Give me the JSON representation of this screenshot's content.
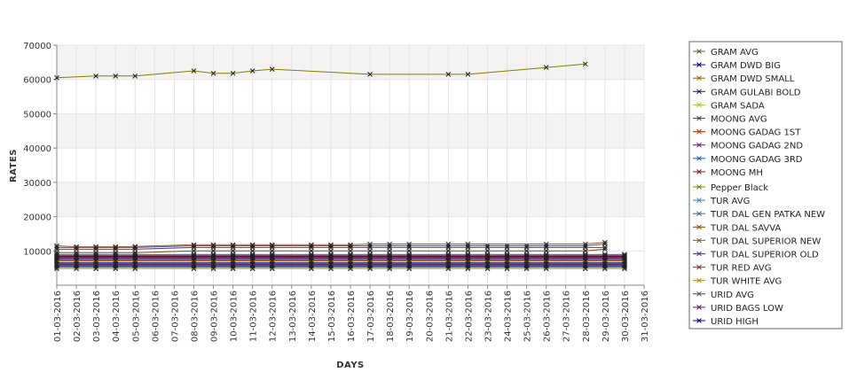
{
  "chart_data": {
    "type": "line",
    "title": "",
    "xlabel": "DAYS",
    "ylabel": "RATES",
    "ylim": [
      0,
      70000
    ],
    "yticks": [
      10000,
      20000,
      30000,
      40000,
      50000,
      60000,
      70000
    ],
    "grid": true,
    "legend_position": "right",
    "x": [
      "01-03-2016",
      "02-03-2016",
      "03-03-2016",
      "04-03-2016",
      "05-03-2016",
      "06-03-2016",
      "07-03-2016",
      "08-03-2016",
      "09-03-2016",
      "10-03-2016",
      "11-03-2016",
      "12-03-2016",
      "13-03-2016",
      "14-03-2016",
      "15-03-2016",
      "16-03-2016",
      "17-03-2016",
      "18-03-2016",
      "19-03-2016",
      "20-03-2016",
      "21-03-2016",
      "22-03-2016",
      "23-03-2016",
      "24-03-2016",
      "25-03-2016",
      "26-03-2016",
      "27-03-2016",
      "28-03-2016",
      "29-03-2016",
      "30-03-2016",
      "31-03-2016"
    ],
    "series": [
      {
        "name": "GRAM AVG",
        "color": "#556b2f",
        "values": [
          5200,
          5200,
          5200,
          5200,
          5200,
          null,
          null,
          5200,
          5200,
          5200,
          5200,
          5200,
          null,
          5200,
          5200,
          5200,
          5200,
          5200,
          5200,
          null,
          5200,
          5200,
          5200,
          5200,
          5200,
          5200,
          null,
          5200,
          5200,
          5200,
          null
        ]
      },
      {
        "name": "GRAM DWD BIG",
        "color": "#00008b",
        "values": [
          6500,
          6500,
          6500,
          6500,
          6500,
          null,
          null,
          6500,
          6500,
          6500,
          6500,
          6500,
          null,
          6500,
          6500,
          6500,
          6500,
          6500,
          6500,
          null,
          6500,
          6500,
          6500,
          6500,
          6500,
          6500,
          null,
          6500,
          6500,
          6500,
          null
        ]
      },
      {
        "name": "GRAM DWD SMALL",
        "color": "#8b6508",
        "values": [
          5800,
          5800,
          5800,
          5800,
          5800,
          null,
          null,
          5800,
          5800,
          5800,
          5800,
          5800,
          null,
          5800,
          5800,
          5800,
          5800,
          5800,
          5800,
          null,
          5800,
          5800,
          5800,
          5800,
          5800,
          5800,
          null,
          5800,
          5800,
          5800,
          null
        ]
      },
      {
        "name": "GRAM GULABI BOLD",
        "color": "#191970",
        "values": [
          5500,
          5500,
          5500,
          5500,
          5500,
          null,
          null,
          5500,
          5500,
          5500,
          5500,
          5500,
          null,
          5500,
          5500,
          5500,
          5500,
          5500,
          5500,
          null,
          5500,
          5500,
          5500,
          5500,
          5500,
          5500,
          null,
          5500,
          5500,
          5500,
          null
        ]
      },
      {
        "name": "GRAM SADA",
        "color": "#9acd32",
        "values": [
          4800,
          4800,
          4800,
          4800,
          4800,
          null,
          null,
          4800,
          4800,
          4800,
          4800,
          4800,
          null,
          4800,
          4800,
          4800,
          4800,
          4800,
          4800,
          null,
          4800,
          4800,
          4800,
          4800,
          4800,
          4800,
          null,
          4800,
          4800,
          4800,
          null
        ]
      },
      {
        "name": "MOONG AVG",
        "color": "#2f4f4f",
        "values": [
          7800,
          7800,
          7800,
          7800,
          7800,
          null,
          null,
          7800,
          7800,
          7800,
          7800,
          7800,
          null,
          7800,
          7800,
          7800,
          7800,
          7800,
          7800,
          null,
          7800,
          7800,
          7800,
          7800,
          7800,
          7800,
          null,
          7800,
          7800,
          7800,
          null
        ]
      },
      {
        "name": "MOONG GADAG 1ST",
        "color": "#cc3300",
        "values": [
          8800,
          8800,
          8800,
          8800,
          8800,
          null,
          null,
          8800,
          8800,
          8800,
          8800,
          8800,
          null,
          8800,
          8800,
          8800,
          8800,
          8800,
          8800,
          null,
          8800,
          8800,
          8800,
          8800,
          8800,
          8800,
          null,
          8800,
          8800,
          8800,
          null
        ]
      },
      {
        "name": "MOONG GADAG 2ND",
        "color": "#8b008b",
        "values": [
          8300,
          8300,
          8300,
          8300,
          8300,
          null,
          null,
          8300,
          8300,
          8300,
          8300,
          8300,
          null,
          8300,
          8300,
          8300,
          8300,
          8300,
          8300,
          null,
          8300,
          8300,
          8300,
          8300,
          8300,
          8300,
          null,
          8300,
          8300,
          8300,
          null
        ]
      },
      {
        "name": "MOONG GADAG 3RD",
        "color": "#1e4ecc",
        "values": [
          7500,
          7500,
          7500,
          7500,
          7500,
          null,
          null,
          7500,
          7500,
          7500,
          7500,
          7500,
          null,
          7500,
          7500,
          7500,
          7500,
          7500,
          7500,
          null,
          7500,
          7500,
          7500,
          7500,
          7500,
          7500,
          null,
          7500,
          7500,
          7500,
          null
        ]
      },
      {
        "name": "MOONG MH",
        "color": "#8b1a1a",
        "values": [
          8000,
          8000,
          8000,
          8000,
          8000,
          null,
          null,
          8000,
          8000,
          8000,
          8000,
          8000,
          null,
          8000,
          8000,
          8000,
          8000,
          8000,
          8000,
          null,
          8000,
          8000,
          8000,
          8000,
          8000,
          8000,
          null,
          8000,
          8000,
          8000,
          null
        ]
      },
      {
        "name": "Pepper Black",
        "color": "#808000",
        "values": [
          60500,
          null,
          61000,
          61000,
          61000,
          null,
          null,
          62500,
          61800,
          61800,
          62500,
          63000,
          null,
          null,
          null,
          null,
          61500,
          null,
          null,
          null,
          61500,
          61500,
          null,
          null,
          null,
          63500,
          null,
          64500,
          null,
          null,
          null
        ]
      },
      {
        "name": "TUR AVG",
        "color": "#4682b4",
        "values": [
          9000,
          9000,
          9000,
          9000,
          9000,
          null,
          null,
          9000,
          9000,
          9000,
          9000,
          9000,
          null,
          9000,
          9000,
          9000,
          9000,
          9000,
          9000,
          null,
          9000,
          9000,
          9000,
          9000,
          9000,
          9000,
          null,
          9000,
          9000,
          9000,
          null
        ]
      },
      {
        "name": "TUR DAL GEN PATKA NEW",
        "color": "#4a5a8a",
        "values": [
          11000,
          11000,
          11000,
          11000,
          11000,
          null,
          null,
          11500,
          11500,
          11500,
          11500,
          11500,
          null,
          11500,
          11500,
          11500,
          11500,
          11500,
          11500,
          null,
          11500,
          11500,
          11500,
          11500,
          11500,
          11500,
          null,
          11500,
          12000,
          null,
          null
        ]
      },
      {
        "name": "TUR DAL SAVVA",
        "color": "#8b4500",
        "values": [
          9500,
          9500,
          9500,
          9500,
          9500,
          null,
          null,
          10000,
          10000,
          10000,
          10000,
          10000,
          null,
          10000,
          10000,
          10000,
          10000,
          10000,
          10000,
          null,
          10000,
          10000,
          10000,
          10000,
          10000,
          10000,
          null,
          10000,
          10500,
          null,
          null
        ]
      },
      {
        "name": "TUR DAL SUPERIOR NEW",
        "color": "#a0522d",
        "values": [
          11500,
          11200,
          11200,
          11200,
          11300,
          null,
          null,
          11800,
          11800,
          11800,
          11800,
          11800,
          null,
          11800,
          11800,
          11800,
          12000,
          12000,
          12000,
          null,
          12000,
          12000,
          null,
          null,
          null,
          12000,
          null,
          12000,
          12500,
          null,
          null
        ]
      },
      {
        "name": "TUR DAL SUPERIOR OLD",
        "color": "#483d8b",
        "values": [
          10500,
          10500,
          10500,
          10500,
          10500,
          null,
          null,
          11000,
          11000,
          11000,
          11000,
          11000,
          null,
          11000,
          11000,
          11000,
          11000,
          11000,
          11000,
          null,
          11000,
          11000,
          11000,
          11000,
          11000,
          11000,
          null,
          11000,
          11000,
          null,
          null
        ]
      },
      {
        "name": "TUR RED AVG",
        "color": "#b22222",
        "values": [
          7200,
          7200,
          7200,
          7200,
          7200,
          null,
          null,
          7200,
          7200,
          7200,
          7200,
          7200,
          null,
          7200,
          7200,
          7200,
          7200,
          7200,
          7200,
          null,
          7200,
          7200,
          7200,
          7200,
          7200,
          7200,
          null,
          7200,
          7200,
          7200,
          null
        ]
      },
      {
        "name": "TUR WHITE AVG",
        "color": "#b8860b",
        "values": [
          7000,
          7000,
          7000,
          7000,
          7000,
          null,
          null,
          7000,
          7000,
          7000,
          7000,
          7000,
          null,
          7000,
          7000,
          7000,
          7000,
          7000,
          7000,
          null,
          7000,
          7000,
          7000,
          7000,
          7000,
          7000,
          null,
          7000,
          7000,
          7000,
          null
        ]
      },
      {
        "name": "URID AVG",
        "color": "#2e5e2e",
        "values": [
          6200,
          6200,
          6200,
          6200,
          6200,
          null,
          null,
          6200,
          6200,
          6200,
          6200,
          6200,
          null,
          6200,
          6200,
          6200,
          6200,
          6200,
          6200,
          null,
          6200,
          6200,
          6200,
          6200,
          6200,
          6200,
          null,
          6200,
          6200,
          6200,
          null
        ]
      },
      {
        "name": "URID BAGS LOW",
        "color": "#5c1a5c",
        "values": [
          6000,
          6000,
          6000,
          6000,
          6000,
          null,
          null,
          6000,
          6000,
          6000,
          6000,
          6000,
          null,
          6000,
          6000,
          6000,
          6000,
          6000,
          6000,
          null,
          6000,
          6000,
          6000,
          6000,
          6000,
          6000,
          null,
          6000,
          6000,
          6000,
          null
        ]
      },
      {
        "name": "URID HIGH",
        "color": "#00008b",
        "values": [
          8500,
          8500,
          8500,
          8500,
          8500,
          null,
          null,
          8500,
          8500,
          8500,
          8500,
          8500,
          null,
          8500,
          8500,
          8500,
          8500,
          8500,
          8500,
          null,
          8500,
          8500,
          8500,
          8500,
          8500,
          8500,
          null,
          8500,
          8500,
          8500,
          null
        ]
      }
    ]
  }
}
